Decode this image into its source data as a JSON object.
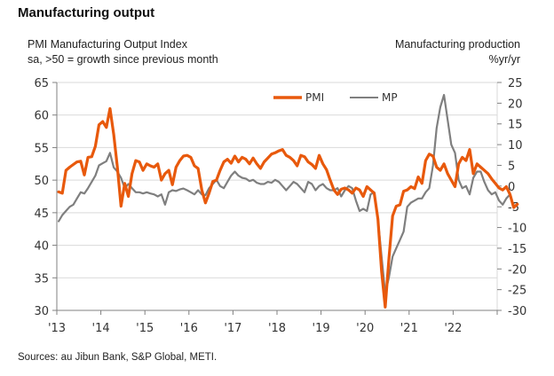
{
  "header": {
    "title": "Manufacturing output",
    "left_subtitle_1": "PMI Manufacturing Output Index",
    "left_subtitle_2": "sa, >50 = growth since previous month",
    "right_subtitle_1": "Manufacturing production",
    "right_subtitle_2": "%yr/yr"
  },
  "footer": {
    "source": "Sources: au Jibun Bank, S&P Global, METI."
  },
  "colors": {
    "pmi": "#E8590C",
    "mp": "#7F7F7F",
    "grid": "#D9D9D9",
    "axis": "#808080"
  },
  "chart_data": {
    "type": "line",
    "title": "Manufacturing output",
    "xlabel": "",
    "ylabel": "PMI Manufacturing Output Index (sa, >50 = growth since previous month)",
    "y2label": "Manufacturing production %yr/yr",
    "x_tick_labels": [
      "'13",
      "'14",
      "'15",
      "'16",
      "'17",
      "'18",
      "'19",
      "'20",
      "'21",
      "'22"
    ],
    "x_range": [
      2013.0,
      2023.0
    ],
    "ylim": [
      30,
      65
    ],
    "yticks": [
      30,
      35,
      40,
      45,
      50,
      55,
      60,
      65
    ],
    "y2lim": [
      -30,
      25
    ],
    "y2ticks": [
      -30,
      -25,
      -20,
      -15,
      -10,
      -5,
      0,
      5,
      10,
      15,
      20,
      25
    ],
    "grid": true,
    "legend": {
      "position": "top-center",
      "entries": [
        "PMI",
        "MP"
      ]
    },
    "series": [
      {
        "name": "PMI",
        "axis": "left",
        "start": "2013-01",
        "frequency": "monthly",
        "values": [
          48.2,
          48.0,
          51.5,
          52.0,
          52.4,
          52.8,
          52.9,
          50.8,
          53.5,
          53.6,
          55.2,
          58.5,
          59.0,
          58.1,
          61.0,
          57.0,
          52.0,
          46.0,
          49.5,
          47.5,
          51.0,
          53.0,
          52.8,
          51.5,
          52.5,
          52.2,
          52.0,
          52.5,
          50.0,
          51.0,
          51.5,
          49.3,
          52.0,
          53.0,
          53.7,
          53.8,
          53.5,
          52.2,
          51.8,
          48.5,
          46.5,
          48.0,
          49.8,
          50.0,
          51.5,
          52.8,
          53.2,
          52.6,
          53.7,
          52.8,
          53.5,
          53.2,
          52.5,
          53.4,
          52.5,
          51.8,
          52.8,
          53.4,
          54.0,
          54.2,
          54.5,
          54.7,
          53.8,
          53.5,
          53.0,
          52.2,
          53.8,
          53.6,
          52.8,
          52.4,
          51.8,
          53.8,
          52.5,
          51.6,
          50.0,
          48.5,
          47.8,
          48.6,
          48.8,
          48.5,
          48.0,
          48.8,
          48.5,
          47.5,
          49.0,
          48.5,
          48.0,
          44.0,
          36.0,
          30.5,
          38.0,
          44.5,
          46.0,
          46.2,
          48.3,
          48.5,
          49.0,
          48.7,
          50.5,
          49.5,
          53.0,
          54.0,
          53.7,
          52.0,
          51.5,
          52.5,
          51.0,
          50.0,
          49.0,
          52.5,
          53.5,
          53.0,
          54.7,
          51.0,
          52.5,
          52.0,
          51.5,
          51.0,
          50.2,
          49.5,
          48.8,
          48.5,
          49.0,
          47.8,
          45.8,
          46.3
        ]
      },
      {
        "name": "MP",
        "axis": "right",
        "start": "2013-01",
        "frequency": "monthly",
        "values": [
          -8.5,
          -7.0,
          -6.0,
          -5.0,
          -4.5,
          -3.0,
          -1.5,
          -1.8,
          -0.5,
          1.0,
          2.5,
          5.0,
          5.5,
          6.0,
          8.0,
          4.5,
          3.5,
          2.0,
          -0.5,
          0.5,
          -0.5,
          -1.5,
          -1.5,
          -1.8,
          -1.5,
          -1.8,
          -2.0,
          -2.5,
          -2.0,
          -4.5,
          -1.5,
          -1.0,
          -1.2,
          -0.8,
          -0.6,
          -1.0,
          -1.5,
          -2.0,
          -1.0,
          -2.0,
          -2.2,
          -0.5,
          0.5,
          1.5,
          0.0,
          -0.5,
          1.0,
          2.5,
          3.5,
          2.5,
          2.0,
          1.8,
          1.2,
          1.5,
          0.8,
          0.5,
          0.5,
          1.0,
          0.8,
          1.5,
          1.0,
          0.0,
          -1.0,
          0.0,
          1.0,
          0.5,
          -0.5,
          -1.5,
          1.0,
          0.5,
          -1.0,
          0.0,
          0.5,
          -0.5,
          -1.0,
          -1.0,
          -0.5,
          -2.5,
          -1.0,
          0.0,
          -0.5,
          -3.5,
          -6.0,
          -5.5,
          -6.0,
          -2.0,
          -1.5,
          -8.0,
          -17.0,
          -26.0,
          -22.0,
          -17.0,
          -15.0,
          -13.0,
          -11.0,
          -5.0,
          -4.0,
          -3.5,
          -3.0,
          -3.0,
          -1.5,
          -0.5,
          5.0,
          14.0,
          19.0,
          22.0,
          16.0,
          10.0,
          8.0,
          1.5,
          -0.5,
          0.0,
          -2.0,
          2.0,
          3.5,
          3.5,
          1.0,
          -1.0,
          -2.0,
          -1.5,
          -3.5,
          -4.5,
          -3.0,
          -2.0
        ]
      }
    ]
  }
}
